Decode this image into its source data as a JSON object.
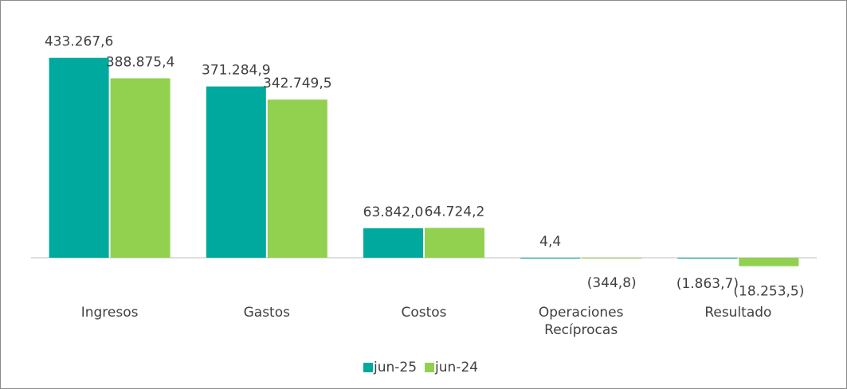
{
  "chart_data": {
    "type": "bar",
    "categories": [
      "Ingresos",
      "Gastos",
      "Costos",
      "Operaciones Recíprocas",
      "Resultado"
    ],
    "series": [
      {
        "name": "jun-25",
        "color": "#00a99d",
        "values": [
          433267.6,
          371284.9,
          63842.0,
          4.4,
          -1863.7
        ],
        "value_labels": [
          "433.267,6",
          "371.284,9",
          "63.842,0",
          "4,4",
          "(1.863,7)"
        ]
      },
      {
        "name": "jun-24",
        "color": "#92d050",
        "values": [
          388875.4,
          342749.5,
          64724.2,
          -344.8,
          -18253.5
        ],
        "value_labels": [
          "388.875,4",
          "342.749,5",
          "64.724,2",
          "(344,8)",
          "(18.253,5)"
        ]
      }
    ],
    "ylim": [
      -50000,
      450000
    ],
    "legend": "bottom"
  }
}
